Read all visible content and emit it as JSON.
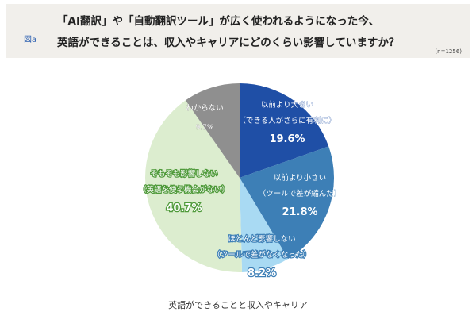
{
  "header": {
    "figure_label": "図a",
    "title_line1": "「AI翻訳」や「自動翻訳ツール」が広く使われるようになった今、",
    "title_line2": "英語ができることは、収入やキャリアにどのくらい影響していますか？",
    "sample_size": "(n=1256)"
  },
  "chart_data": {
    "type": "pie",
    "title": "「AI翻訳」や「自動翻訳ツール」が広く使われるようになった今、英語ができることは、収入やキャリアにどのくらい影響していますか？",
    "caption": "英語ができることと収入やキャリア",
    "slices": [
      {
        "label": "以前より大きい",
        "sublabel": "（できる人がさらに有利に）",
        "value": 19.6,
        "value_label": "19.6%",
        "color": "#1f4fa6",
        "text_color": "#ffffff",
        "stroke": "#1f4fa6"
      },
      {
        "label": "以前より小さい",
        "sublabel": "（ツールで差が縮んだ）",
        "value": 21.8,
        "value_label": "21.8%",
        "color": "#3d7fb6",
        "text_color": "#ffffff",
        "stroke": "#3d7fb6"
      },
      {
        "label": "ほとんど影響しない",
        "sublabel": "（ツールで差がなくなった）",
        "value": 8.2,
        "value_label": "8.2%",
        "color": "#a9daf3",
        "text_color": "#ffffff",
        "stroke": "#3d7fb6"
      },
      {
        "label": "そもそも影響しない",
        "sublabel": "（英語を使う機会がない）",
        "value": 40.7,
        "value_label": "40.7%",
        "color": "#dcedcf",
        "text_color": "#ffffff",
        "stroke": "#4f9a3a"
      },
      {
        "label": "わからない",
        "sublabel": "",
        "value": 9.7,
        "value_label": "9.7%",
        "color": "#8f8f8f",
        "text_color": "#ffffff",
        "stroke": "#8f8f8f"
      }
    ]
  }
}
